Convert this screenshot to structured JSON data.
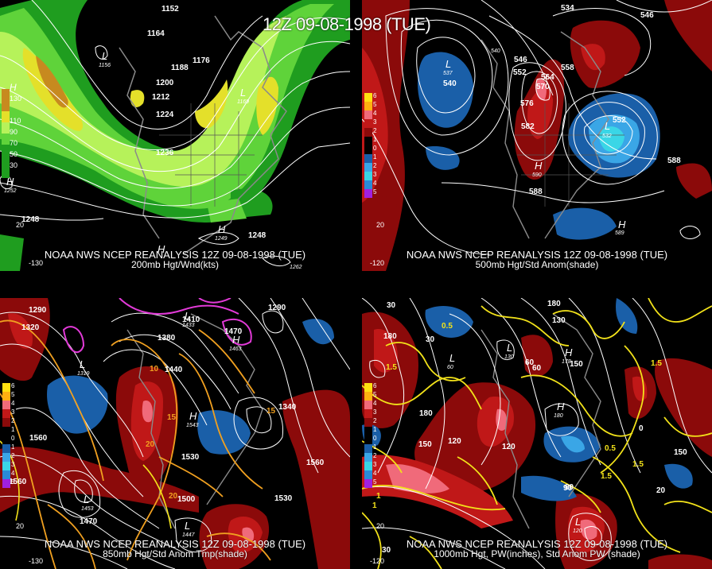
{
  "title": "12Z 09-08-1998 (TUE)",
  "panels": [
    {
      "id": "p1",
      "line1": "NOAA NWS NCEP REANALYSIS 12Z 09-08-1998 (TUE)",
      "line2": "200mb Hgt/Wnd(kts)",
      "colorbar": [
        "130",
        "110",
        "90",
        "70",
        "50",
        "30"
      ],
      "colorbar_title": "H",
      "contours": [
        "1152",
        "1164",
        "1176",
        "1188",
        "1200",
        "1212",
        "1224",
        "1236",
        "1248",
        "1248",
        "1248"
      ],
      "centers": [
        {
          "type": "L",
          "value": "1156"
        },
        {
          "type": "L",
          "value": "1169"
        },
        {
          "type": "H",
          "value": "1252"
        },
        {
          "type": "H",
          "value": "1249"
        },
        {
          "type": "H",
          "value": "1262"
        }
      ],
      "lat_labels": [
        "-130",
        "20"
      ]
    },
    {
      "id": "p2",
      "line1": "NOAA NWS NCEP REANALYSIS 12Z 09-08-1998 (TUE)",
      "line2": "500mb Hgt/Std Anom(shade)",
      "colorbar": [
        "6",
        "5",
        "4",
        "3",
        "2",
        "1",
        "0",
        "1",
        "2",
        "3",
        "4",
        "5"
      ],
      "contours": [
        "534",
        "546",
        "540",
        "546",
        "552",
        "558",
        "564",
        "570",
        "576",
        "582",
        "588",
        "552",
        "588"
      ],
      "centers": [
        {
          "type": "L",
          "value": "537"
        },
        {
          "type": "L",
          "value": "532"
        },
        {
          "type": "L",
          "value": "540"
        },
        {
          "type": "H",
          "value": "590"
        },
        {
          "type": "H",
          "value": "589"
        }
      ],
      "lat_labels": [
        "-120",
        "20"
      ]
    },
    {
      "id": "p3",
      "line1": "NOAA NWS NCEP REANALYSIS 12Z 09-08-1998 (TUE)",
      "line2": "850mb Hgt/Std Anom Tmp(shade)",
      "colorbar": [
        "6",
        "5",
        "4",
        "3",
        "2",
        "1",
        "0",
        "1",
        "2",
        "3",
        "4",
        "5"
      ],
      "contours": [
        "1290",
        "1320",
        "1380",
        "1410",
        "1440",
        "1470",
        "1560",
        "1530",
        "1500",
        "1470",
        "1530",
        "1560",
        "1560",
        "1290",
        "1340"
      ],
      "centers": [
        {
          "type": "L",
          "value": "1319"
        },
        {
          "type": "L",
          "value": "1433"
        },
        {
          "type": "L",
          "value": "1453"
        },
        {
          "type": "L",
          "value": "1447"
        },
        {
          "type": "H",
          "value": "1543"
        },
        {
          "type": "H",
          "value": "1463"
        }
      ],
      "temp_labels": [
        "10",
        "15",
        "20",
        "20",
        "15"
      ],
      "lat_labels": [
        "-130",
        "20"
      ]
    },
    {
      "id": "p4",
      "line1": "NOAA NWS NCEP REANALYSIS 12Z 09-08-1998 (TUE)",
      "line2": "1000mb Hgt, PW(inches), Std Anom PW (shade)",
      "colorbar": [
        "6",
        "5",
        "4",
        "3",
        "2",
        "1",
        "0",
        "1",
        "2",
        "3",
        "4",
        "5"
      ],
      "contours": [
        "180",
        "30",
        "60",
        "120",
        "150",
        "180",
        "150",
        "120",
        "90",
        "60",
        "30",
        "0",
        "30",
        "20",
        "150",
        "180",
        "130",
        "90"
      ],
      "pw_labels": [
        "0.5",
        "1",
        "1.5",
        "1.5",
        "0.5",
        "1.5",
        "1.5",
        "1"
      ],
      "centers": [
        {
          "type": "L",
          "value": "60"
        },
        {
          "type": "L",
          "value": "130"
        },
        {
          "type": "L",
          "value": "120"
        },
        {
          "type": "H",
          "value": "180"
        },
        {
          "type": "H",
          "value": "178"
        }
      ],
      "lat_labels": [
        "-120",
        "20"
      ]
    }
  ],
  "colors": {
    "background": "#000000",
    "wind_green_light": "#b6f25a",
    "wind_green": "#5fd33a",
    "wind_dark_green": "#1a9d1a",
    "wind_yellow": "#e4e02a",
    "wind_orange": "#c78a1f",
    "anom_red_dark": "#8b0a0a",
    "anom_red": "#c01818",
    "anom_pink": "#f06a7a",
    "anom_blue": "#1a5fa8",
    "anom_cyan": "#3ad6e6",
    "contour": "#ffffff",
    "temp_orange": "#f0a020",
    "pw_yellow": "#f2e21a",
    "magenta": "#e23ad8"
  }
}
